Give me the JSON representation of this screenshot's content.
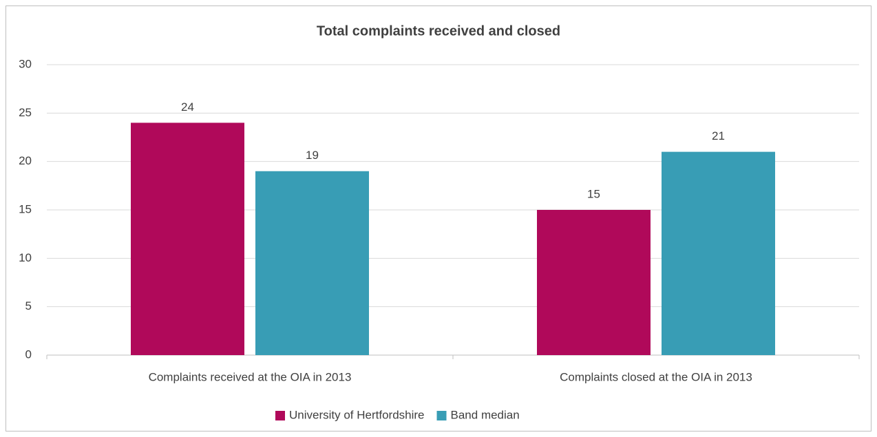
{
  "chart_data": {
    "type": "bar",
    "title": "Total complaints received and closed",
    "categories": [
      "Complaints received at the OIA in 2013",
      "Complaints closed at the OIA in 2013"
    ],
    "series": [
      {
        "name": "University of Hertfordshire",
        "color": "#b0095a",
        "values": [
          24,
          15
        ]
      },
      {
        "name": "Band median",
        "color": "#389db5",
        "values": [
          19,
          21
        ]
      }
    ],
    "ylim": [
      0,
      30
    ],
    "yticks": [
      0,
      5,
      10,
      15,
      20,
      25,
      30
    ],
    "grid": true,
    "legend": "bottom",
    "data_labels": true
  }
}
